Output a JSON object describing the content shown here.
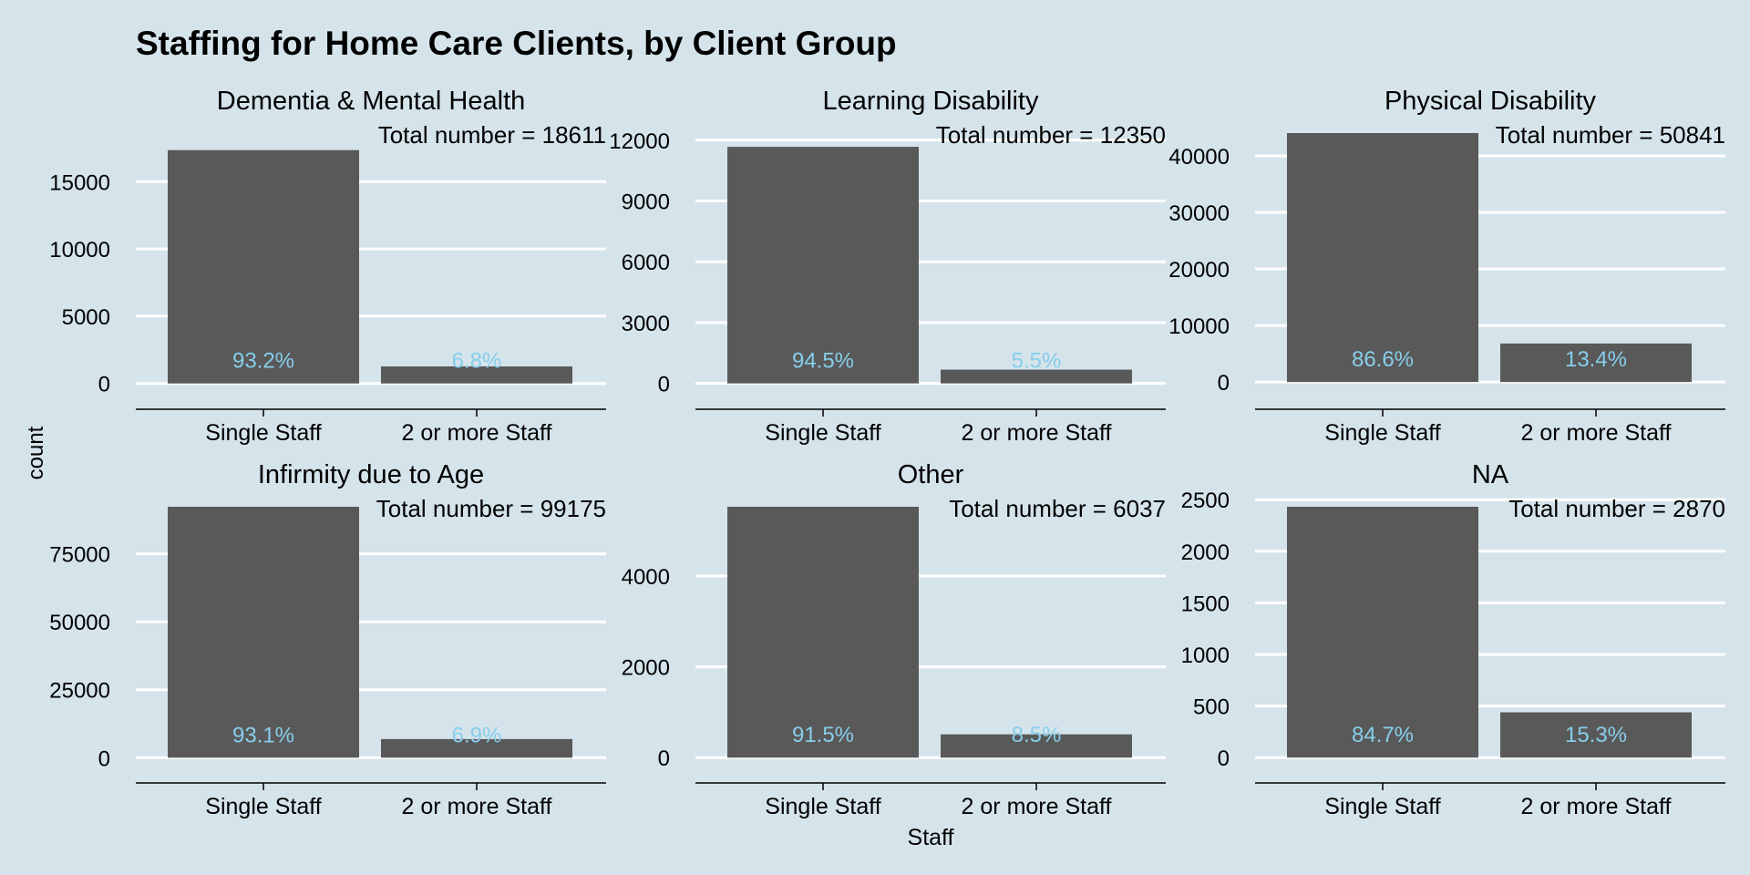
{
  "chart_data": {
    "type": "bar",
    "title": "Staffing for Home Care Clients, by Client Group",
    "xlabel": "Staff",
    "ylabel": "count",
    "categories": [
      "Single Staff",
      "2 or more Staff"
    ],
    "grid": "horizontal major only",
    "colors": {
      "background": "#d5e4eb",
      "bar": "#595959",
      "percent_label": "#87ceeb",
      "grid": "#ffffff",
      "text": "#000000"
    },
    "panels": [
      {
        "name": "Dementia & Mental Health",
        "total_label": "Total number = 18611",
        "values": [
          17345,
          1266
        ],
        "percent_labels": [
          "93.2%",
          "6.8%"
        ],
        "ylim": [
          -900,
          18611
        ],
        "yticks": [
          0,
          5000,
          10000,
          15000
        ]
      },
      {
        "name": "Learning Disability",
        "total_label": "Total number = 12350",
        "values": [
          11671,
          679
        ],
        "percent_labels": [
          "94.5%",
          "5.5%"
        ],
        "ylim": [
          -600,
          12350
        ],
        "yticks": [
          0,
          3000,
          6000,
          9000,
          12000
        ]
      },
      {
        "name": "Physical Disability",
        "total_label": "Total number = 50841",
        "values": [
          44028,
          6813
        ],
        "percent_labels": [
          "86.6%",
          "13.4%"
        ],
        "ylim": [
          -2400,
          44028
        ],
        "yticks": [
          0,
          10000,
          20000,
          30000,
          40000
        ]
      },
      {
        "name": "Infirmity due to Age",
        "total_label": "Total number = 99175",
        "values": [
          92332,
          6843
        ],
        "percent_labels": [
          "93.1%",
          "6.9%"
        ],
        "ylim": [
          -4600,
          92332
        ],
        "yticks": [
          0,
          25000,
          50000,
          75000
        ]
      },
      {
        "name": "Other",
        "total_label": "Total number = 6037",
        "values": [
          5524,
          513
        ],
        "percent_labels": [
          "91.5%",
          "8.5%"
        ],
        "ylim": [
          -276,
          5524
        ],
        "yticks": [
          0,
          2000,
          4000
        ]
      },
      {
        "name": "NA",
        "total_label": "Total number = 2870",
        "values": [
          2431,
          439
        ],
        "percent_labels": [
          "84.7%",
          "15.3%"
        ],
        "ylim": [
          -122,
          2431
        ],
        "yticks": [
          0,
          500,
          1000,
          1500,
          2000,
          2500
        ]
      }
    ]
  }
}
